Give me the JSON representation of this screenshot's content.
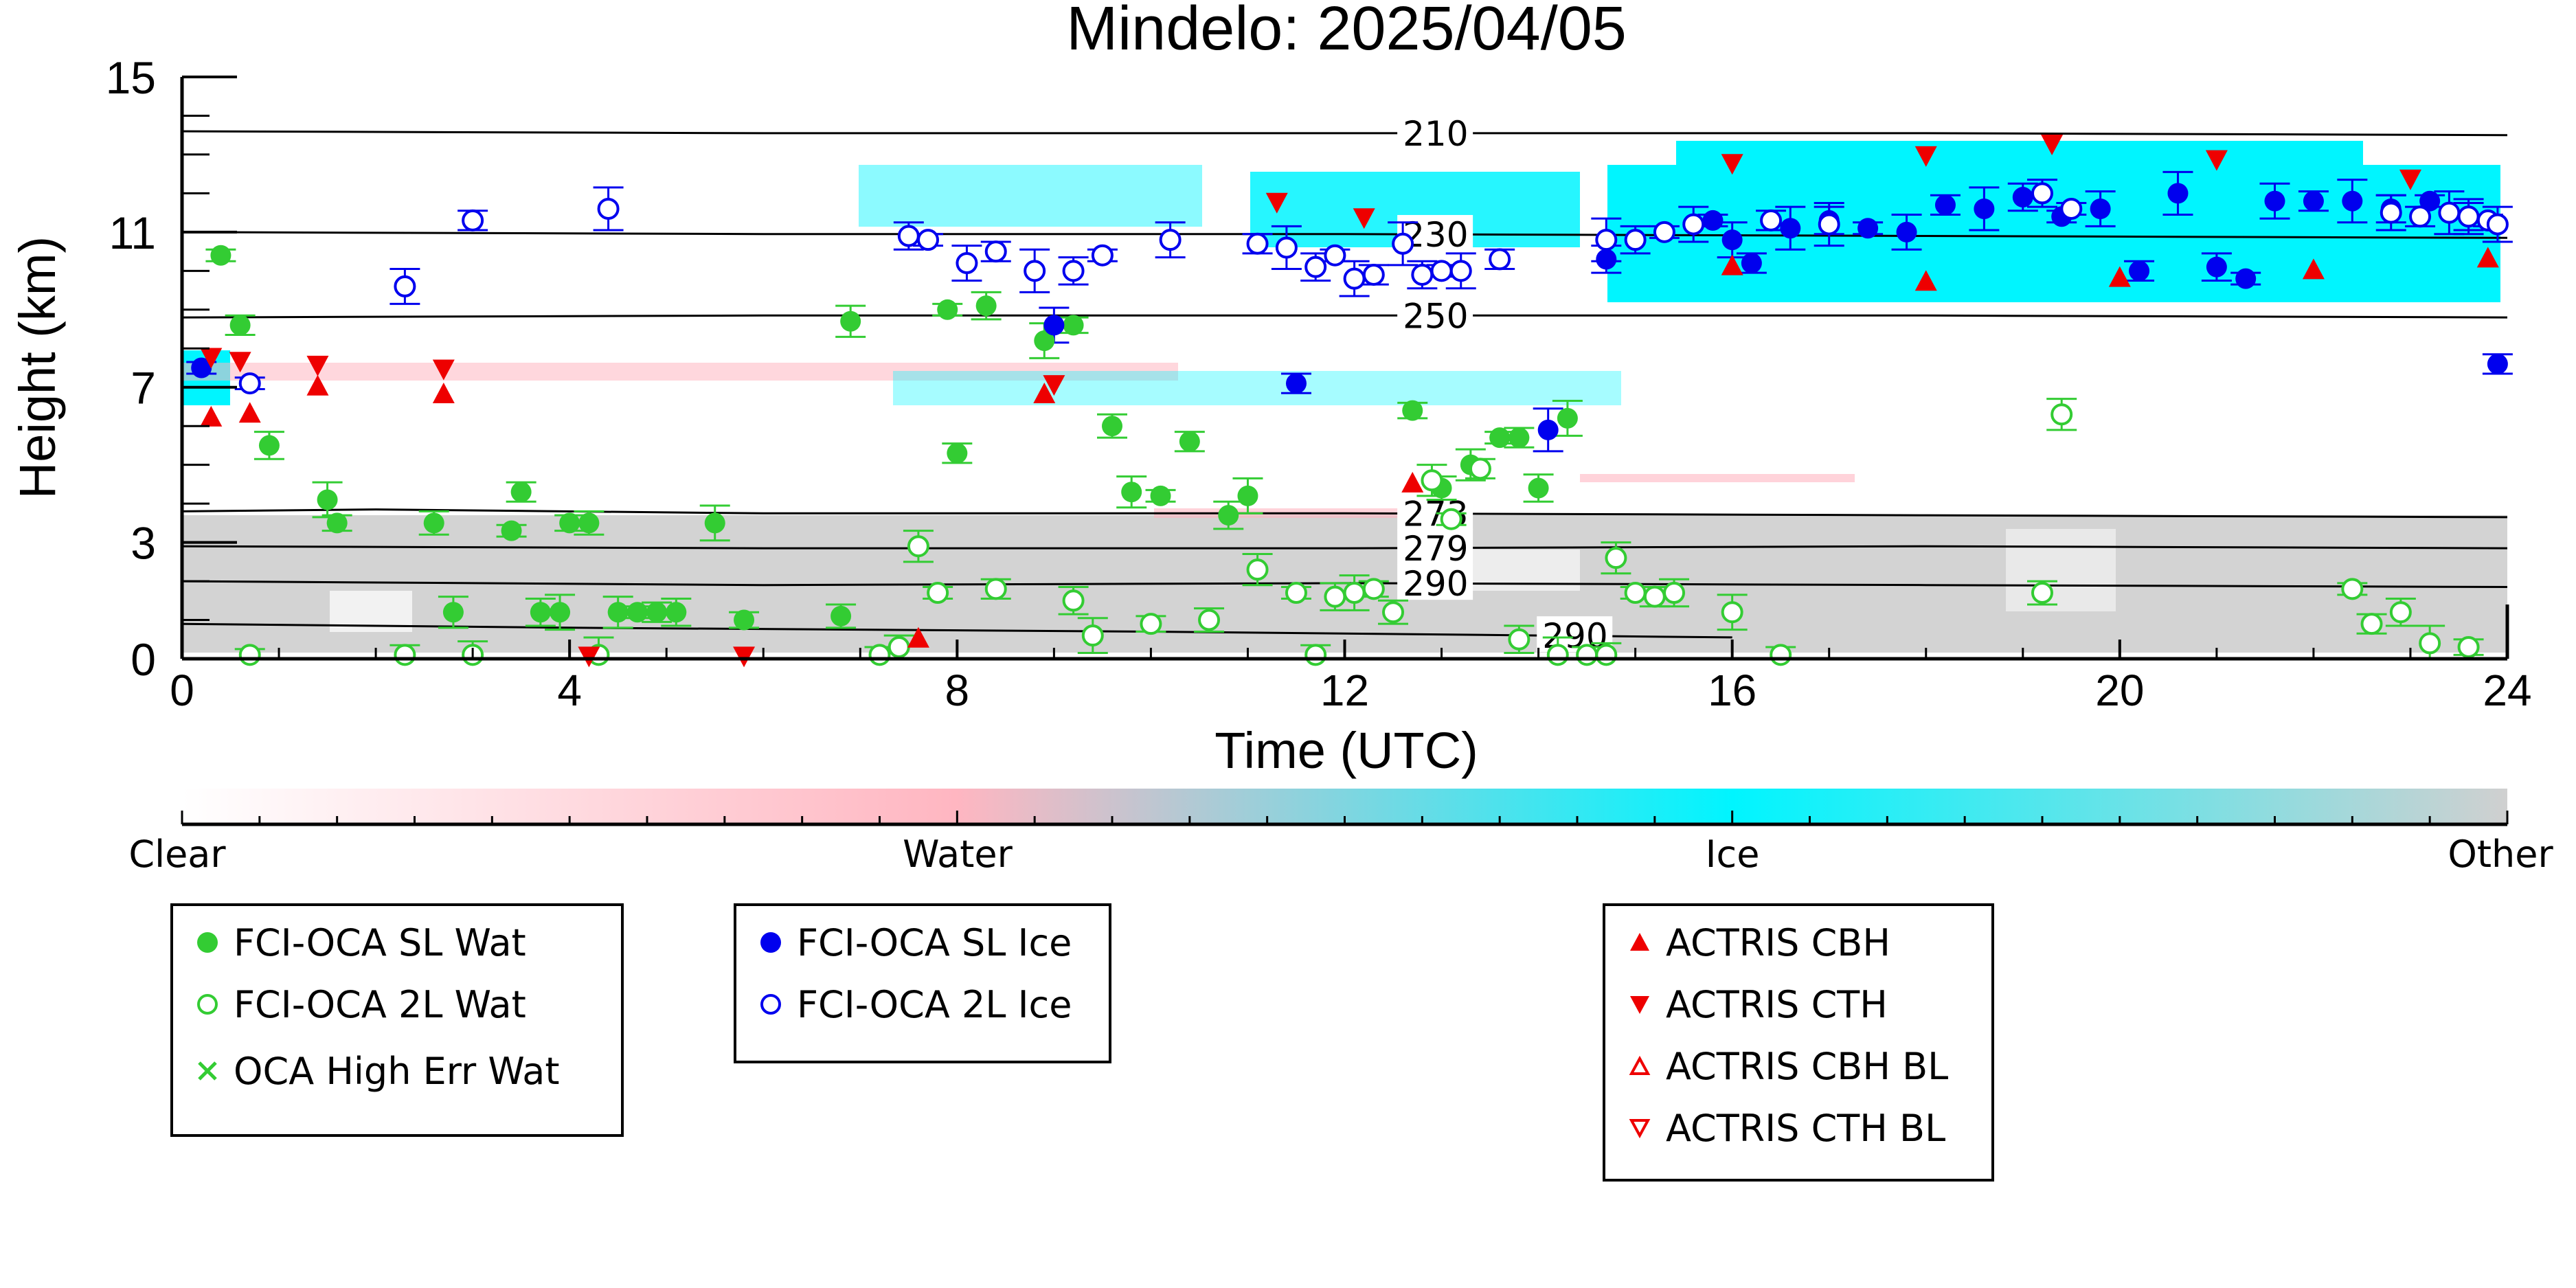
{
  "chart_data": {
    "type": "scatter",
    "title": "Mindelo: 2025/04/05",
    "xlabel": "Time (UTC)",
    "ylabel": "Height (km)",
    "xlim": [
      0,
      24
    ],
    "ylim": [
      0,
      15
    ],
    "x_ticks": [
      0,
      4,
      8,
      12,
      16,
      20,
      24
    ],
    "y_ticks": [
      0,
      3,
      7,
      11,
      15
    ],
    "grid": false,
    "temperature_contours": [
      {
        "label": "210",
        "points": [
          [
            0,
            13.6
          ],
          [
            6,
            13.55
          ],
          [
            12,
            13.55
          ],
          [
            18,
            13.55
          ],
          [
            24,
            13.5
          ]
        ]
      },
      {
        "label": "230",
        "points": [
          [
            0,
            11.0
          ],
          [
            6,
            10.95
          ],
          [
            12,
            10.95
          ],
          [
            18,
            10.9
          ],
          [
            24,
            10.85
          ]
        ]
      },
      {
        "label": "250",
        "points": [
          [
            0,
            8.8
          ],
          [
            6,
            8.85
          ],
          [
            12,
            8.85
          ],
          [
            18,
            8.85
          ],
          [
            24,
            8.8
          ]
        ]
      },
      {
        "label": "273",
        "points": [
          [
            0,
            3.8
          ],
          [
            2,
            3.85
          ],
          [
            6,
            3.75
          ],
          [
            12,
            3.75
          ],
          [
            18,
            3.7
          ],
          [
            24,
            3.65
          ]
        ]
      },
      {
        "label": "279",
        "points": [
          [
            0,
            2.9
          ],
          [
            6,
            2.85
          ],
          [
            12,
            2.85
          ],
          [
            18,
            2.9
          ],
          [
            24,
            2.85
          ]
        ]
      },
      {
        "label": "290",
        "points": [
          [
            0,
            2.0
          ],
          [
            6,
            1.9
          ],
          [
            12,
            1.95
          ],
          [
            18,
            1.9
          ],
          [
            24,
            1.85
          ]
        ]
      },
      {
        "label": "290",
        "points": [
          [
            0,
            0.9
          ],
          [
            4,
            0.8
          ],
          [
            10,
            0.7
          ],
          [
            14,
            0.6
          ],
          [
            16,
            0.55
          ]
        ]
      }
    ],
    "series": [
      {
        "name": "FCI-OCA SL Wat",
        "marker": "filled-circle",
        "color": "#33cc33",
        "points": [
          [
            0.4,
            10.4
          ],
          [
            0.6,
            8.6
          ],
          [
            0.9,
            5.5
          ],
          [
            1.5,
            4.1
          ],
          [
            1.6,
            3.5
          ],
          [
            2.6,
            3.5
          ],
          [
            2.8,
            1.2
          ],
          [
            3.4,
            3.3
          ],
          [
            3.5,
            4.3
          ],
          [
            3.7,
            1.2
          ],
          [
            3.9,
            1.2
          ],
          [
            4.0,
            3.5
          ],
          [
            4.2,
            3.5
          ],
          [
            4.5,
            1.2
          ],
          [
            4.7,
            1.2
          ],
          [
            4.9,
            1.2
          ],
          [
            5.1,
            1.2
          ],
          [
            5.5,
            3.5
          ],
          [
            5.8,
            1.0
          ],
          [
            6.8,
            1.1
          ],
          [
            6.9,
            8.7
          ],
          [
            7.9,
            9.0
          ],
          [
            8.0,
            5.3
          ],
          [
            8.3,
            9.1
          ],
          [
            8.9,
            8.2
          ],
          [
            9.2,
            8.6
          ],
          [
            9.6,
            6.0
          ],
          [
            9.8,
            4.3
          ],
          [
            10.1,
            4.2
          ],
          [
            10.4,
            5.6
          ],
          [
            10.8,
            3.7
          ],
          [
            11.0,
            4.2
          ],
          [
            12.7,
            6.4
          ],
          [
            13.0,
            4.4
          ],
          [
            13.3,
            5.0
          ],
          [
            13.6,
            5.7
          ],
          [
            13.8,
            5.7
          ],
          [
            14.0,
            4.4
          ],
          [
            14.3,
            6.2
          ]
        ]
      },
      {
        "name": "FCI-OCA 2L Wat",
        "marker": "open-circle",
        "color": "#33cc33",
        "points": [
          [
            0.7,
            0.1
          ],
          [
            2.3,
            0.1
          ],
          [
            3.0,
            0.1
          ],
          [
            4.3,
            0.1
          ],
          [
            7.2,
            0.1
          ],
          [
            7.4,
            0.3
          ],
          [
            7.6,
            2.9
          ],
          [
            7.8,
            1.7
          ],
          [
            8.4,
            1.8
          ],
          [
            9.2,
            1.5
          ],
          [
            9.4,
            0.6
          ],
          [
            10.0,
            0.9
          ],
          [
            10.6,
            1.0
          ],
          [
            11.1,
            2.3
          ],
          [
            11.5,
            1.7
          ],
          [
            11.7,
            0.1
          ],
          [
            11.9,
            1.6
          ],
          [
            12.1,
            1.7
          ],
          [
            12.3,
            1.8
          ],
          [
            12.5,
            1.2
          ],
          [
            12.9,
            4.6
          ],
          [
            13.1,
            3.6
          ],
          [
            13.4,
            4.9
          ],
          [
            13.8,
            0.5
          ],
          [
            14.2,
            0.1
          ],
          [
            14.5,
            0.1
          ],
          [
            14.7,
            0.1
          ],
          [
            14.8,
            2.6
          ],
          [
            15.0,
            1.7
          ],
          [
            15.2,
            1.6
          ],
          [
            15.4,
            1.7
          ],
          [
            16.0,
            1.2
          ],
          [
            16.5,
            0.1
          ],
          [
            19.2,
            1.7
          ],
          [
            19.4,
            6.3
          ],
          [
            22.4,
            1.8
          ],
          [
            22.6,
            0.9
          ],
          [
            22.9,
            1.2
          ],
          [
            23.2,
            0.4
          ],
          [
            23.6,
            0.3
          ]
        ]
      },
      {
        "name": "OCA High Err Wat",
        "marker": "x",
        "color": "#33cc33",
        "points": []
      },
      {
        "name": "FCI-OCA SL Ice",
        "marker": "filled-circle",
        "color": "#0000ee",
        "points": [
          [
            0.2,
            7.5
          ],
          [
            9.0,
            8.6
          ],
          [
            11.5,
            7.1
          ],
          [
            14.1,
            5.9
          ],
          [
            14.7,
            10.3
          ],
          [
            15.8,
            11.3
          ],
          [
            16.0,
            10.8
          ],
          [
            16.2,
            10.2
          ],
          [
            16.6,
            11.1
          ],
          [
            17.0,
            11.3
          ],
          [
            17.4,
            11.1
          ],
          [
            17.8,
            11.0
          ],
          [
            18.2,
            11.7
          ],
          [
            18.6,
            11.6
          ],
          [
            19.0,
            11.9
          ],
          [
            19.4,
            11.4
          ],
          [
            19.8,
            11.6
          ],
          [
            20.2,
            10.0
          ],
          [
            20.6,
            12.0
          ],
          [
            21.0,
            10.1
          ],
          [
            21.3,
            9.8
          ],
          [
            21.6,
            11.8
          ],
          [
            22.0,
            11.8
          ],
          [
            22.4,
            11.8
          ],
          [
            22.8,
            11.6
          ],
          [
            23.2,
            11.8
          ],
          [
            23.6,
            11.4
          ],
          [
            23.9,
            7.6
          ]
        ]
      },
      {
        "name": "FCI-OCA 2L Ice",
        "marker": "open-circle",
        "color": "#0000ee",
        "points": [
          [
            0.7,
            7.1
          ],
          [
            2.3,
            9.6
          ],
          [
            3.0,
            11.3
          ],
          [
            4.4,
            11.6
          ],
          [
            7.5,
            10.9
          ],
          [
            7.7,
            10.8
          ],
          [
            8.1,
            10.2
          ],
          [
            8.4,
            10.5
          ],
          [
            8.8,
            10.0
          ],
          [
            9.2,
            10.0
          ],
          [
            9.5,
            10.4
          ],
          [
            10.2,
            10.8
          ],
          [
            11.1,
            10.7
          ],
          [
            11.4,
            10.6
          ],
          [
            11.7,
            10.1
          ],
          [
            11.9,
            10.4
          ],
          [
            12.1,
            9.8
          ],
          [
            12.3,
            9.9
          ],
          [
            12.6,
            10.7
          ],
          [
            12.8,
            9.9
          ],
          [
            13.0,
            10.0
          ],
          [
            13.2,
            10.0
          ],
          [
            13.6,
            10.3
          ],
          [
            14.7,
            10.8
          ],
          [
            15.0,
            10.8
          ],
          [
            15.3,
            11.0
          ],
          [
            15.6,
            11.2
          ],
          [
            16.4,
            11.3
          ],
          [
            17.0,
            11.2
          ],
          [
            19.2,
            12.0
          ],
          [
            19.5,
            11.6
          ],
          [
            22.8,
            11.5
          ],
          [
            23.1,
            11.4
          ],
          [
            23.4,
            11.5
          ],
          [
            23.6,
            11.4
          ],
          [
            23.8,
            11.3
          ],
          [
            23.9,
            11.2
          ]
        ]
      },
      {
        "name": "ACTRIS CBH",
        "marker": "filled-triangle-up",
        "color": "#ee0000",
        "points": [
          [
            0.3,
            6.2
          ],
          [
            0.7,
            6.3
          ],
          [
            1.4,
            7.0
          ],
          [
            2.7,
            6.8
          ],
          [
            7.6,
            0.5
          ],
          [
            8.9,
            6.8
          ],
          [
            12.7,
            4.5
          ],
          [
            16.0,
            10.1
          ],
          [
            18.0,
            9.7
          ],
          [
            20.0,
            9.8
          ],
          [
            22.0,
            10.0
          ],
          [
            23.8,
            10.3
          ]
        ]
      },
      {
        "name": "ACTRIS CTH",
        "marker": "filled-triangle-down",
        "color": "#ee0000",
        "points": [
          [
            0.3,
            7.8
          ],
          [
            0.6,
            7.7
          ],
          [
            1.4,
            7.6
          ],
          [
            2.7,
            7.5
          ],
          [
            4.2,
            0.1
          ],
          [
            5.8,
            0.1
          ],
          [
            9.0,
            7.1
          ],
          [
            11.3,
            11.8
          ],
          [
            12.2,
            11.4
          ],
          [
            16.0,
            12.8
          ],
          [
            18.0,
            13.0
          ],
          [
            19.3,
            13.3
          ],
          [
            21.0,
            12.9
          ],
          [
            23.0,
            12.4
          ]
        ]
      },
      {
        "name": "ACTRIS CBH BL",
        "marker": "open-triangle-up",
        "color": "#ee0000",
        "points": []
      },
      {
        "name": "ACTRIS CTH BL",
        "marker": "open-triangle-down",
        "color": "#ee0000",
        "points": []
      }
    ],
    "colorbar": {
      "labels": [
        "Clear",
        "Water",
        "Ice",
        "Other"
      ],
      "colors": [
        "#ffffff",
        "#ffb6c1",
        "#00f5ff",
        "#d0d0d0"
      ]
    },
    "legends": [
      {
        "entries": [
          "FCI-OCA SL Wat",
          "FCI-OCA 2L Wat",
          "OCA High Err Wat"
        ]
      },
      {
        "entries": [
          "FCI-OCA SL Ice",
          "FCI-OCA 2L Ice"
        ]
      },
      {
        "entries": [
          "ACTRIS CBH",
          "ACTRIS CTH",
          "ACTRIS CBH BL",
          "ACTRIS CTH BL"
        ]
      }
    ]
  }
}
